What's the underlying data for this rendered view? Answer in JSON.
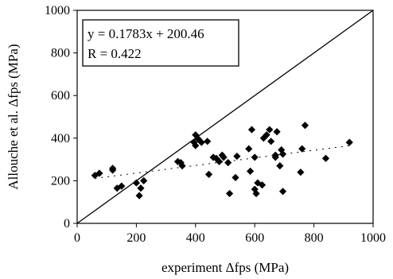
{
  "chart_data": {
    "type": "scatter",
    "xlabel": "experiment Δfps (MPa)",
    "ylabel": "Allouche et al. Δfps (MPa)",
    "xlim": [
      0,
      1000
    ],
    "ylim": [
      0,
      1000
    ],
    "xticks": [
      "0",
      "200",
      "400",
      "600",
      "800",
      "1000"
    ],
    "yticks": [
      "0",
      "200",
      "400",
      "600",
      "800",
      "1000"
    ],
    "grid": false,
    "legend": "none",
    "annotation": {
      "equation": "y = 0.1783x + 200.46",
      "r_value": "R = 0.422"
    },
    "reference_line": {
      "style": "solid",
      "points": [
        [
          0,
          0
        ],
        [
          1000,
          1000
        ]
      ]
    },
    "trend_line": {
      "style": "dotted",
      "slope": 0.1783,
      "intercept": 200.46,
      "x_range": [
        60,
        920
      ]
    },
    "marker": {
      "shape": "diamond",
      "color": "#000000"
    },
    "points": [
      [
        60,
        225
      ],
      [
        75,
        235
      ],
      [
        120,
        250
      ],
      [
        120,
        258
      ],
      [
        135,
        165
      ],
      [
        150,
        175
      ],
      [
        200,
        190
      ],
      [
        210,
        130
      ],
      [
        215,
        165
      ],
      [
        225,
        200
      ],
      [
        340,
        290
      ],
      [
        350,
        285
      ],
      [
        355,
        270
      ],
      [
        395,
        380
      ],
      [
        400,
        415
      ],
      [
        400,
        365
      ],
      [
        410,
        395
      ],
      [
        420,
        380
      ],
      [
        440,
        385
      ],
      [
        445,
        230
      ],
      [
        460,
        310
      ],
      [
        470,
        305
      ],
      [
        480,
        290
      ],
      [
        490,
        320
      ],
      [
        495,
        310
      ],
      [
        510,
        285
      ],
      [
        515,
        140
      ],
      [
        535,
        215
      ],
      [
        540,
        315
      ],
      [
        580,
        350
      ],
      [
        585,
        245
      ],
      [
        590,
        440
      ],
      [
        600,
        310
      ],
      [
        600,
        160
      ],
      [
        605,
        140
      ],
      [
        610,
        190
      ],
      [
        625,
        180
      ],
      [
        630,
        400
      ],
      [
        640,
        415
      ],
      [
        650,
        440
      ],
      [
        655,
        385
      ],
      [
        670,
        310
      ],
      [
        670,
        320
      ],
      [
        675,
        430
      ],
      [
        685,
        270
      ],
      [
        690,
        345
      ],
      [
        695,
        150
      ],
      [
        695,
        325
      ],
      [
        755,
        240
      ],
      [
        760,
        350
      ],
      [
        770,
        460
      ],
      [
        840,
        305
      ],
      [
        920,
        380
      ]
    ]
  }
}
